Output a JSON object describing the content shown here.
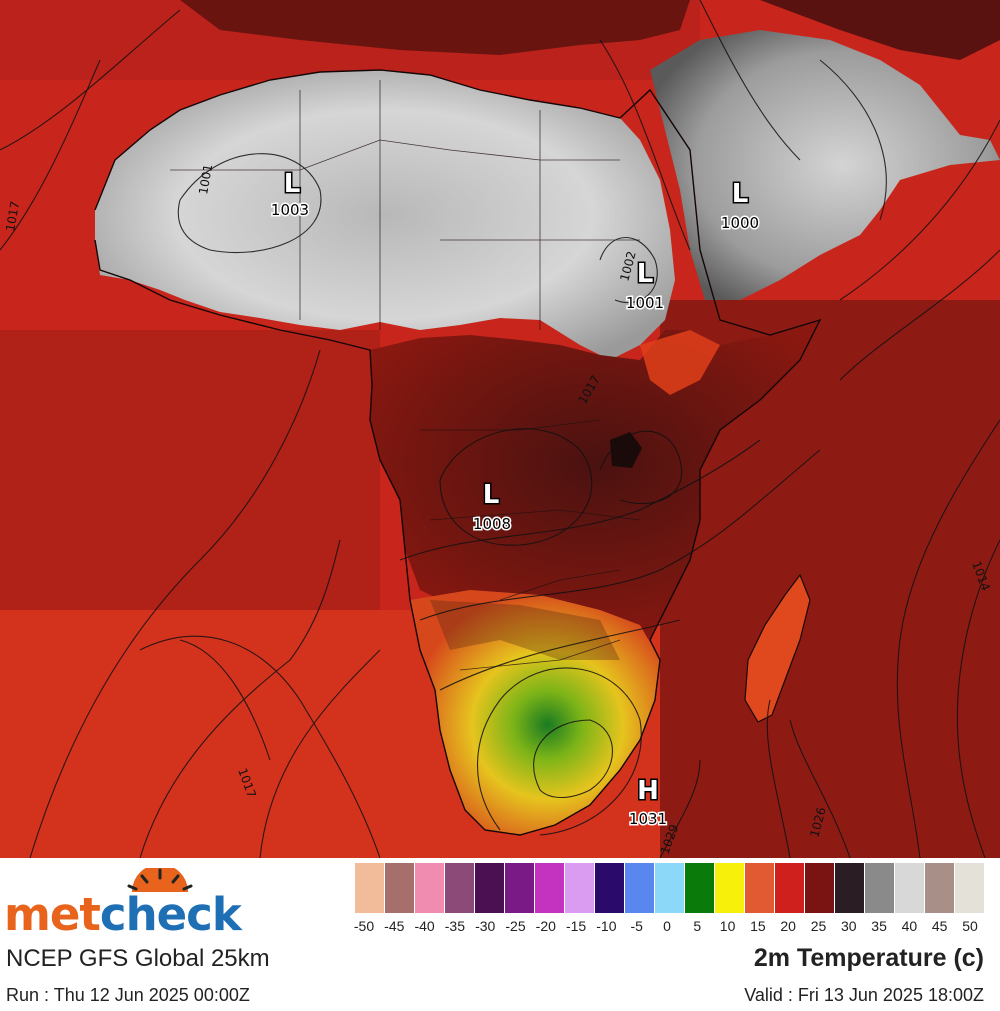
{
  "map": {
    "lows": [
      {
        "symbol": "L",
        "value": "1003"
      },
      {
        "symbol": "L",
        "value": "1000"
      },
      {
        "symbol": "L",
        "value": "1001"
      },
      {
        "symbol": "L",
        "value": "1008"
      }
    ],
    "highs": [
      {
        "symbol": "H",
        "value": "1031"
      }
    ],
    "isobar_labels": [
      "1001",
      "1017",
      "1002",
      "1017",
      "1014",
      "1017",
      "1026",
      "1029"
    ]
  },
  "brand": {
    "part1": "met",
    "part2": "check"
  },
  "product": "NCEP GFS Global 25km",
  "run": "Run : Thu 12 Jun 2025 00:00Z",
  "variable": "2m Temperature (c)",
  "valid": "Valid : Fri 13 Jun 2025 18:00Z",
  "legend": {
    "colors": [
      "#f2bc9a",
      "#a66f6c",
      "#f08cb0",
      "#8c4a78",
      "#4a1052",
      "#7a1a86",
      "#c333c0",
      "#da9cf0",
      "#2a0a6a",
      "#5a86f0",
      "#8cd8f8",
      "#0a7a0a",
      "#f6f00a",
      "#e25a32",
      "#d0201e",
      "#7a1412",
      "#2a1e24",
      "#8a8a8a",
      "#d8d8d8",
      "#a89088",
      "#e4e2d8"
    ],
    "ticks": [
      "-50",
      "-45",
      "-40",
      "-35",
      "-30",
      "-25",
      "-20",
      "-15",
      "-10",
      "-5",
      "0",
      "5",
      "10",
      "15",
      "20",
      "25",
      "30",
      "35",
      "40",
      "45",
      "50"
    ]
  }
}
